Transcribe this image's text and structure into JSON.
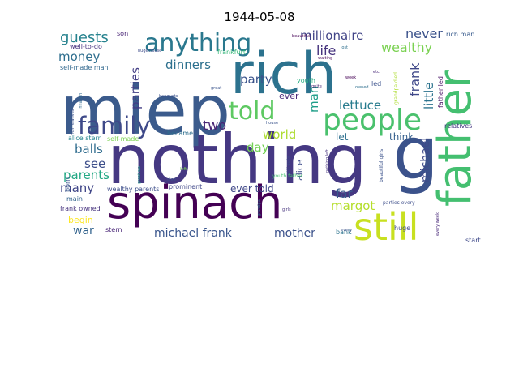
{
  "title": "1944-05-08",
  "words": [
    {
      "t": "miep",
      "c": "#3b5b8c"
    },
    {
      "t": "rich",
      "c": "#2c728e"
    },
    {
      "t": "nothing",
      "c": "#453882"
    },
    {
      "t": "spinach",
      "c": "#440154"
    },
    {
      "t": "father",
      "c": "#44bf70"
    },
    {
      "t": "g",
      "c": "#3b528b"
    },
    {
      "t": "still",
      "c": "#c8e020"
    },
    {
      "t": "people",
      "c": "#4ac16d"
    },
    {
      "t": "anything",
      "c": "#2a788e"
    },
    {
      "t": "family",
      "c": "#3e4989"
    },
    {
      "t": "told",
      "c": "#5ec962"
    },
    {
      "t": "millionaire",
      "c": "#414487"
    },
    {
      "t": "guests",
      "c": "#26828e"
    },
    {
      "t": "never",
      "c": "#3b528b"
    },
    {
      "t": "wealthy",
      "c": "#7ad151"
    },
    {
      "t": "life",
      "c": "#46337e"
    },
    {
      "t": "money",
      "c": "#2e6e8e"
    },
    {
      "t": "dinners",
      "c": "#2d708e"
    },
    {
      "t": "parties",
      "c": "#433e85"
    },
    {
      "t": "party",
      "c": "#3a538b"
    },
    {
      "t": "lettuce",
      "c": "#287c8e"
    },
    {
      "t": "frank",
      "c": "#3f4889"
    },
    {
      "t": "little",
      "c": "#2c738e"
    },
    {
      "t": "man",
      "c": "#1f9e89"
    },
    {
      "t": "two",
      "c": "#482576"
    },
    {
      "t": "world",
      "c": "#addc30"
    },
    {
      "t": "day",
      "c": "#73d056"
    },
    {
      "t": "balls",
      "c": "#2f6c8e"
    },
    {
      "t": "see",
      "c": "#3d4e8a"
    },
    {
      "t": "parents",
      "c": "#22a884"
    },
    {
      "t": "michael",
      "c": "#3e4a89"
    },
    {
      "t": "many",
      "c": "#404688"
    },
    {
      "t": "far",
      "c": "#38598c"
    },
    {
      "t": "margot",
      "c": "#b5de2b"
    },
    {
      "t": "think",
      "c": "#355f8d"
    },
    {
      "t": "let",
      "c": "#2e6f8e"
    },
    {
      "t": "war",
      "c": "#33638d"
    },
    {
      "t": "michael frank",
      "c": "#39558c"
    },
    {
      "t": "mother",
      "c": "#3b518b"
    },
    {
      "t": "ever told",
      "c": "#3f4788"
    },
    {
      "t": "begin",
      "c": "#fde725"
    },
    {
      "t": "alice",
      "c": "#3e4c8a"
    },
    {
      "t": "ever",
      "c": "#482878"
    },
    {
      "t": "son",
      "c": "#482475"
    },
    {
      "t": "well-to-do",
      "c": "#46317e"
    },
    {
      "t": "frankfurt",
      "c": "#35b779"
    },
    {
      "t": "self-made man",
      "c": "#31688e"
    },
    {
      "t": "rich man",
      "c": "#375a8c"
    },
    {
      "t": "youth",
      "c": "#27ad81"
    },
    {
      "t": "led",
      "c": "#3b518b"
    },
    {
      "t": "became",
      "c": "#2e6f8e"
    },
    {
      "t": "alice stern",
      "c": "#25838e"
    },
    {
      "t": "self-made",
      "c": "#7ad151"
    },
    {
      "t": "prominent",
      "c": "#3f4788"
    },
    {
      "t": "wealthy parents",
      "c": "#3d4e8a"
    },
    {
      "t": "main",
      "c": "#33638d"
    },
    {
      "t": "frank owned",
      "c": "#46337e"
    },
    {
      "t": "stern",
      "c": "#482576"
    },
    {
      "t": "born",
      "c": "#39568c"
    },
    {
      "t": "bank",
      "c": "#2c738e"
    },
    {
      "t": "start",
      "c": "#3e4989"
    },
    {
      "t": "huge",
      "c": "#3f4889"
    },
    {
      "t": "father led",
      "c": "#471365"
    },
    {
      "t": "relatives",
      "c": "#453882"
    },
    {
      "t": "huge house",
      "c": "#3e4c8a"
    },
    {
      "t": "youth father",
      "c": "#46c06f"
    },
    {
      "t": "beautiful girls",
      "c": "#3b528b"
    },
    {
      "t": "parties every",
      "c": "#3d4e8a"
    },
    {
      "t": "grandpa died",
      "c": "#addc30"
    },
    {
      "t": "inflation",
      "c": "#31688e"
    },
    {
      "t": "banquets",
      "c": "#3b528b"
    },
    {
      "t": "great",
      "c": "#3a548c"
    },
    {
      "t": "week",
      "c": "#440154"
    },
    {
      "t": "owned",
      "c": "#2e6f8e"
    },
    {
      "t": "etc",
      "c": "#482878"
    },
    {
      "t": "waiting",
      "c": "#440154"
    },
    {
      "t": "beautiful",
      "c": "#440154"
    },
    {
      "t": "every",
      "c": "#3b528b"
    },
    {
      "t": "quite",
      "c": "#482475"
    },
    {
      "t": "girls",
      "c": "#46337e"
    },
    {
      "t": "grandpa",
      "c": "#2e6f8e"
    },
    {
      "t": "nothing left",
      "c": "#46337e"
    },
    {
      "t": "still quite",
      "c": "#3e4c8a"
    },
    {
      "t": "died",
      "c": "#3b528b"
    },
    {
      "t": "house",
      "c": "#3a548c"
    },
    {
      "t": "left",
      "c": "#7ad151"
    },
    {
      "t": "every week",
      "c": "#482878"
    },
    {
      "t": "great wa",
      "c": "#1f9e89"
    },
    {
      "t": "lost",
      "c": "#2e6f8e"
    },
    {
      "t": "rich relatives",
      "c": "#3b528b"
    }
  ]
}
